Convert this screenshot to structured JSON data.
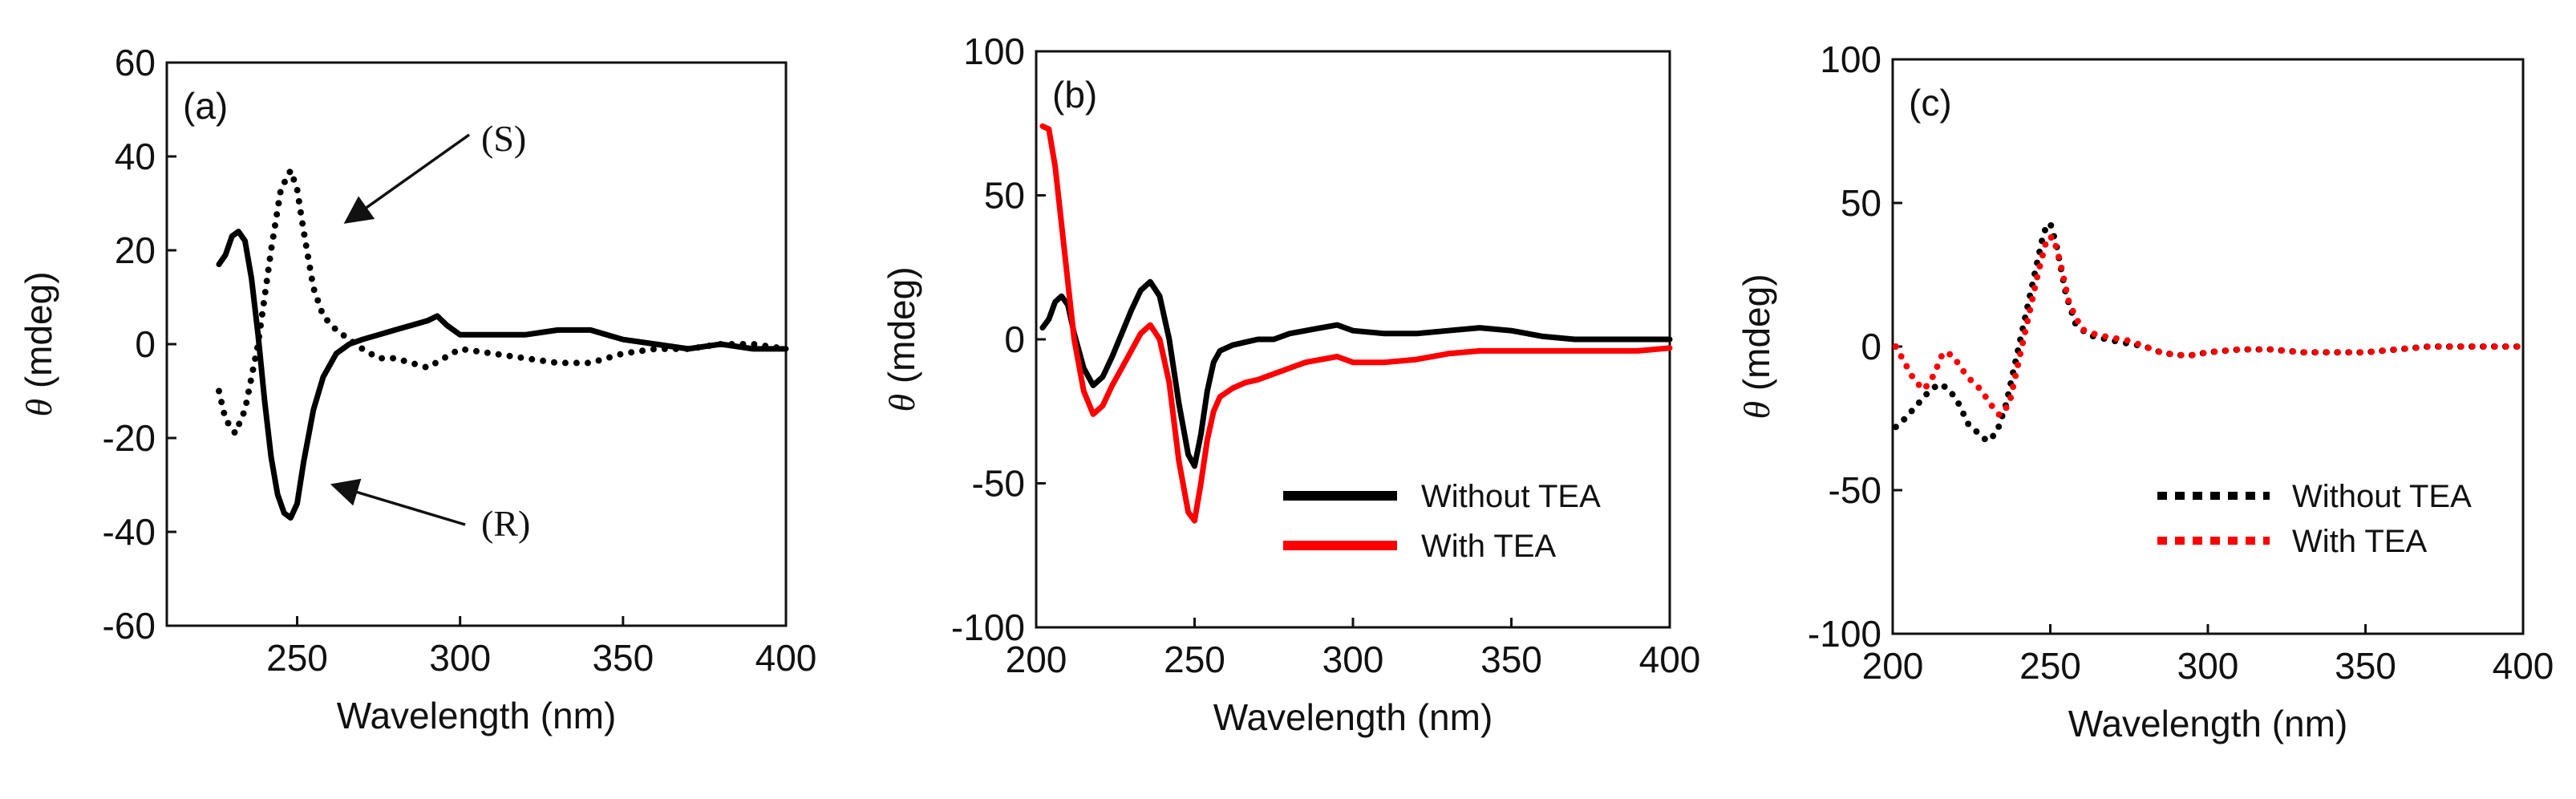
{
  "chart_data": [
    {
      "type": "line",
      "panel_label": "(a)",
      "xlabel": "Wavelength (nm)",
      "ylabel_symbol": "θ",
      "ylabel_unit": " (mdeg)",
      "xlim": [
        210,
        400
      ],
      "ylim": [
        -60,
        60
      ],
      "xticks": [
        250,
        300,
        350,
        400
      ],
      "yticks": [
        -60,
        -40,
        -20,
        0,
        20,
        40,
        60
      ],
      "annotations": [
        {
          "text": "(S)",
          "target": [
            265,
            26
          ]
        },
        {
          "text": "(R)",
          "target": [
            261,
            -30
          ]
        }
      ],
      "series": [
        {
          "name": "(S)",
          "color": "#000000",
          "style": "dotted",
          "x": [
            226,
            228,
            231,
            234,
            238,
            242,
            245,
            248,
            250,
            252,
            255,
            258,
            262,
            266,
            270,
            275,
            280,
            285,
            290,
            295,
            300,
            310,
            320,
            330,
            340,
            350,
            360,
            370,
            380,
            390,
            400
          ],
          "y": [
            -10,
            -16,
            -19,
            -14,
            0,
            20,
            33,
            37,
            33,
            24,
            12,
            6,
            3,
            1,
            -1,
            -3,
            -3,
            -4,
            -5,
            -3,
            -1,
            -2,
            -3,
            -4,
            -4,
            -2,
            -1,
            -1,
            0,
            0,
            -1
          ]
        },
        {
          "name": "(R)",
          "color": "#000000",
          "style": "solid",
          "x": [
            226,
            228,
            230,
            232,
            234,
            236,
            238,
            240,
            242,
            244,
            246,
            248,
            250,
            252,
            255,
            258,
            262,
            266,
            270,
            275,
            280,
            285,
            290,
            293,
            296,
            300,
            310,
            320,
            330,
            340,
            350,
            360,
            370,
            380,
            390,
            400
          ],
          "y": [
            17,
            19,
            23,
            24,
            22,
            14,
            2,
            -12,
            -24,
            -32,
            -36,
            -37,
            -34,
            -25,
            -14,
            -7,
            -2,
            0,
            1,
            2,
            3,
            4,
            5,
            6,
            4,
            2,
            2,
            2,
            3,
            3,
            1,
            0,
            -1,
            0,
            -1,
            -1
          ]
        }
      ]
    },
    {
      "type": "line",
      "panel_label": "(b)",
      "xlabel": "Wavelength (nm)",
      "ylabel_symbol": "θ",
      "ylabel_unit": " (mdeg)",
      "xlim": [
        200,
        400
      ],
      "ylim": [
        -100,
        100
      ],
      "xticks": [
        200,
        250,
        300,
        350,
        400
      ],
      "yticks": [
        -100,
        -50,
        0,
        50,
        100
      ],
      "legend": "bottom-right",
      "series": [
        {
          "name": "Without TEA",
          "color": "#000000",
          "style": "solid",
          "x": [
            202,
            204,
            206,
            208,
            210,
            212,
            215,
            218,
            221,
            224,
            227,
            230,
            233,
            236,
            239,
            242,
            245,
            248,
            250,
            252,
            254,
            256,
            258,
            262,
            266,
            270,
            275,
            280,
            285,
            290,
            295,
            300,
            310,
            320,
            330,
            340,
            350,
            360,
            370,
            380,
            390,
            400
          ],
          "y": [
            4,
            7,
            13,
            15,
            12,
            2,
            -10,
            -16,
            -13,
            -6,
            2,
            10,
            17,
            20,
            15,
            0,
            -22,
            -40,
            -44,
            -33,
            -18,
            -8,
            -4,
            -2,
            -1,
            0,
            0,
            2,
            3,
            4,
            5,
            3,
            2,
            2,
            3,
            4,
            3,
            1,
            0,
            0,
            0,
            0
          ]
        },
        {
          "name": "With TEA",
          "color": "#ff0000",
          "style": "solid",
          "x": [
            202,
            204,
            206,
            208,
            210,
            212,
            215,
            218,
            221,
            224,
            227,
            230,
            233,
            236,
            239,
            242,
            245,
            248,
            250,
            252,
            254,
            256,
            258,
            262,
            266,
            270,
            275,
            280,
            285,
            290,
            295,
            300,
            310,
            320,
            330,
            340,
            350,
            360,
            370,
            380,
            390,
            400
          ],
          "y": [
            74,
            73,
            60,
            40,
            20,
            0,
            -18,
            -26,
            -23,
            -16,
            -10,
            -4,
            2,
            5,
            0,
            -15,
            -42,
            -60,
            -63,
            -50,
            -35,
            -25,
            -20,
            -17,
            -15,
            -14,
            -12,
            -10,
            -8,
            -7,
            -6,
            -8,
            -8,
            -7,
            -5,
            -4,
            -4,
            -4,
            -4,
            -4,
            -4,
            -3
          ]
        }
      ]
    },
    {
      "type": "line",
      "panel_label": "(c)",
      "xlabel": "Wavelength (nm)",
      "ylabel_symbol": "θ",
      "ylabel_unit": " (mdeg)",
      "xlim": [
        200,
        400
      ],
      "ylim": [
        -100,
        100
      ],
      "xticks": [
        200,
        250,
        300,
        350,
        400
      ],
      "yticks": [
        -100,
        -50,
        0,
        50,
        100
      ],
      "legend": "bottom-right",
      "series": [
        {
          "name": "Without TEA",
          "color": "#000000",
          "style": "dotted",
          "x": [
            201,
            204,
            208,
            212,
            215,
            218,
            221,
            224,
            227,
            230,
            233,
            236,
            239,
            242,
            245,
            248,
            250,
            252,
            255,
            258,
            262,
            266,
            270,
            275,
            280,
            285,
            290,
            295,
            300,
            310,
            320,
            330,
            340,
            350,
            360,
            370,
            380,
            390,
            400
          ],
          "y": [
            -28,
            -25,
            -20,
            -15,
            -13,
            -15,
            -20,
            -27,
            -30,
            -33,
            -30,
            -20,
            -5,
            10,
            25,
            40,
            43,
            35,
            18,
            8,
            4,
            3,
            2,
            1,
            0,
            -2,
            -3,
            -3,
            -2,
            -1,
            -1,
            -2,
            -2,
            -2,
            -1,
            0,
            0,
            0,
            0
          ]
        },
        {
          "name": "With TEA",
          "color": "#ff0000",
          "style": "dotted",
          "x": [
            201,
            204,
            207,
            210,
            213,
            216,
            219,
            222,
            225,
            228,
            231,
            234,
            237,
            240,
            243,
            246,
            249,
            251,
            253,
            256,
            260,
            265,
            270,
            275,
            280,
            285,
            290,
            295,
            300,
            310,
            320,
            330,
            340,
            350,
            360,
            370,
            380,
            390,
            400
          ],
          "y": [
            0,
            -6,
            -12,
            -15,
            -10,
            -2,
            -3,
            -8,
            -12,
            -15,
            -20,
            -24,
            -20,
            -5,
            10,
            25,
            38,
            38,
            30,
            15,
            6,
            4,
            3,
            2,
            0,
            -2,
            -3,
            -3,
            -2,
            -1,
            -1,
            -2,
            -2,
            -2,
            -1,
            0,
            0,
            0,
            0
          ]
        }
      ]
    }
  ]
}
